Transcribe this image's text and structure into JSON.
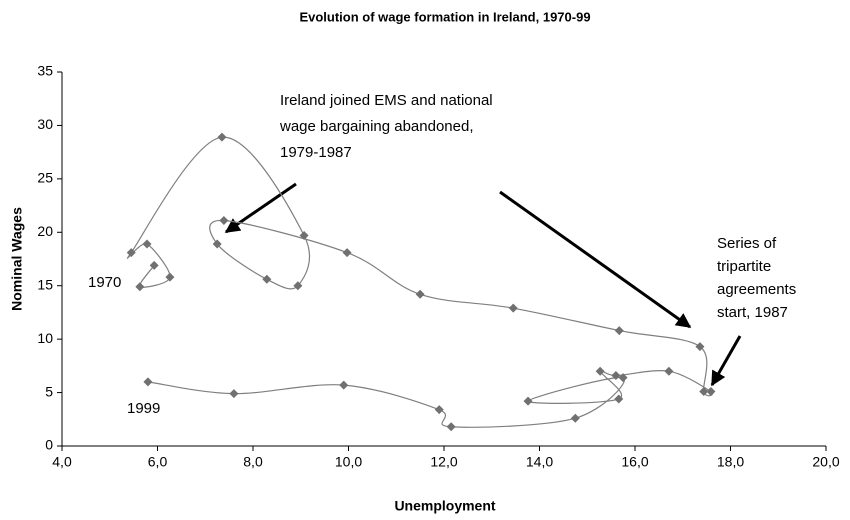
{
  "chart_data": {
    "type": "line",
    "title": "Evolution of wage formation in Ireland, 1970-99",
    "x_label": "Unemployment",
    "y_label": "Nominal Wages",
    "x": [
      5.93,
      5.63,
      6.26,
      5.78,
      5.45,
      7.35,
      9.07,
      8.94,
      8.29,
      7.25,
      7.39,
      9.97,
      11.5,
      13.45,
      15.67,
      17.36,
      17.44,
      17.59,
      16.71,
      15.6,
      15.27,
      15.66,
      13.76,
      15.75,
      14.75,
      12.15,
      11.9,
      9.9,
      7.6,
      5.8
    ],
    "series": [
      {
        "color": "#7f7f7f",
        "marker_color": "#707070",
        "values": [
          16.9,
          14.9,
          15.8,
          18.9,
          18.1,
          28.9,
          19.7,
          15.0,
          15.6,
          18.9,
          21.1,
          18.1,
          14.2,
          12.9,
          10.8,
          9.3,
          5.1,
          5.1,
          7.0,
          6.6,
          7.0,
          4.4,
          4.2,
          6.4,
          2.6,
          1.8,
          3.4,
          5.7,
          4.9,
          6.0
        ]
      }
    ],
    "xlim": [
      4,
      20
    ],
    "xticks": [
      {
        "value": 4,
        "label": "4,0"
      },
      {
        "value": 6,
        "label": "6,0"
      },
      {
        "value": 8,
        "label": "8,0"
      },
      {
        "value": 10,
        "label": "10,0"
      },
      {
        "value": 12,
        "label": "12,0"
      },
      {
        "value": 14,
        "label": "14,0"
      },
      {
        "value": 16,
        "label": "16,0"
      },
      {
        "value": 18,
        "label": "18,0"
      },
      {
        "value": 20,
        "label": "20,0"
      }
    ],
    "ylim": [
      0,
      35
    ],
    "yticks": [
      0,
      5,
      10,
      15,
      20,
      25,
      30,
      35
    ],
    "grid": false,
    "annotations": [
      {
        "lines": [
          "Ireland joined EMS and national",
          "wage bargaining abandoned,",
          "1979-1987"
        ]
      },
      {
        "lines": [
          "Series of",
          "tripartite",
          "agreements",
          "start, 1987"
        ]
      },
      {
        "lines": [
          "1970"
        ]
      },
      {
        "lines": [
          "1999"
        ]
      }
    ]
  }
}
